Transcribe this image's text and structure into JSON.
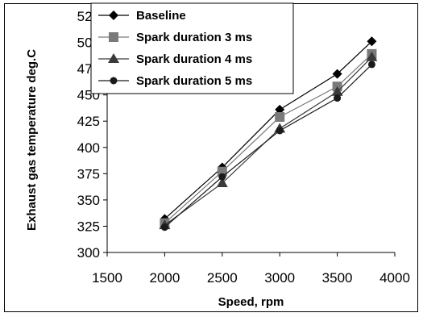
{
  "chart_data": {
    "type": "line",
    "title": "",
    "xlabel": "Speed, rpm",
    "ylabel": "Exhaust gas temperature deg.C",
    "xlim": [
      1500,
      4000
    ],
    "ylim": [
      300,
      525
    ],
    "xticks": [
      1500,
      2000,
      2500,
      3000,
      3500,
      4000
    ],
    "yticks": [
      300,
      325,
      350,
      375,
      400,
      425,
      450,
      475,
      500,
      525
    ],
    "grid": false,
    "legend_position": "top-left",
    "x": [
      2000,
      2500,
      3000,
      3500,
      3800
    ],
    "series": [
      {
        "name": "Baseline",
        "marker": "diamond",
        "color": "#000000",
        "values": [
          332,
          381,
          436,
          470,
          501
        ]
      },
      {
        "name": "Spark duration 3 ms",
        "marker": "square",
        "color": "#7a7a7a",
        "values": [
          328,
          377,
          429,
          458,
          489
        ]
      },
      {
        "name": "Spark duration 4 ms",
        "marker": "triangle",
        "color": "#3a3a3a",
        "values": [
          326,
          366,
          418,
          453,
          486
        ]
      },
      {
        "name": "Spark duration 5 ms",
        "marker": "circle",
        "color": "#1a1a1a",
        "values": [
          324,
          372,
          416,
          447,
          479
        ]
      }
    ]
  }
}
